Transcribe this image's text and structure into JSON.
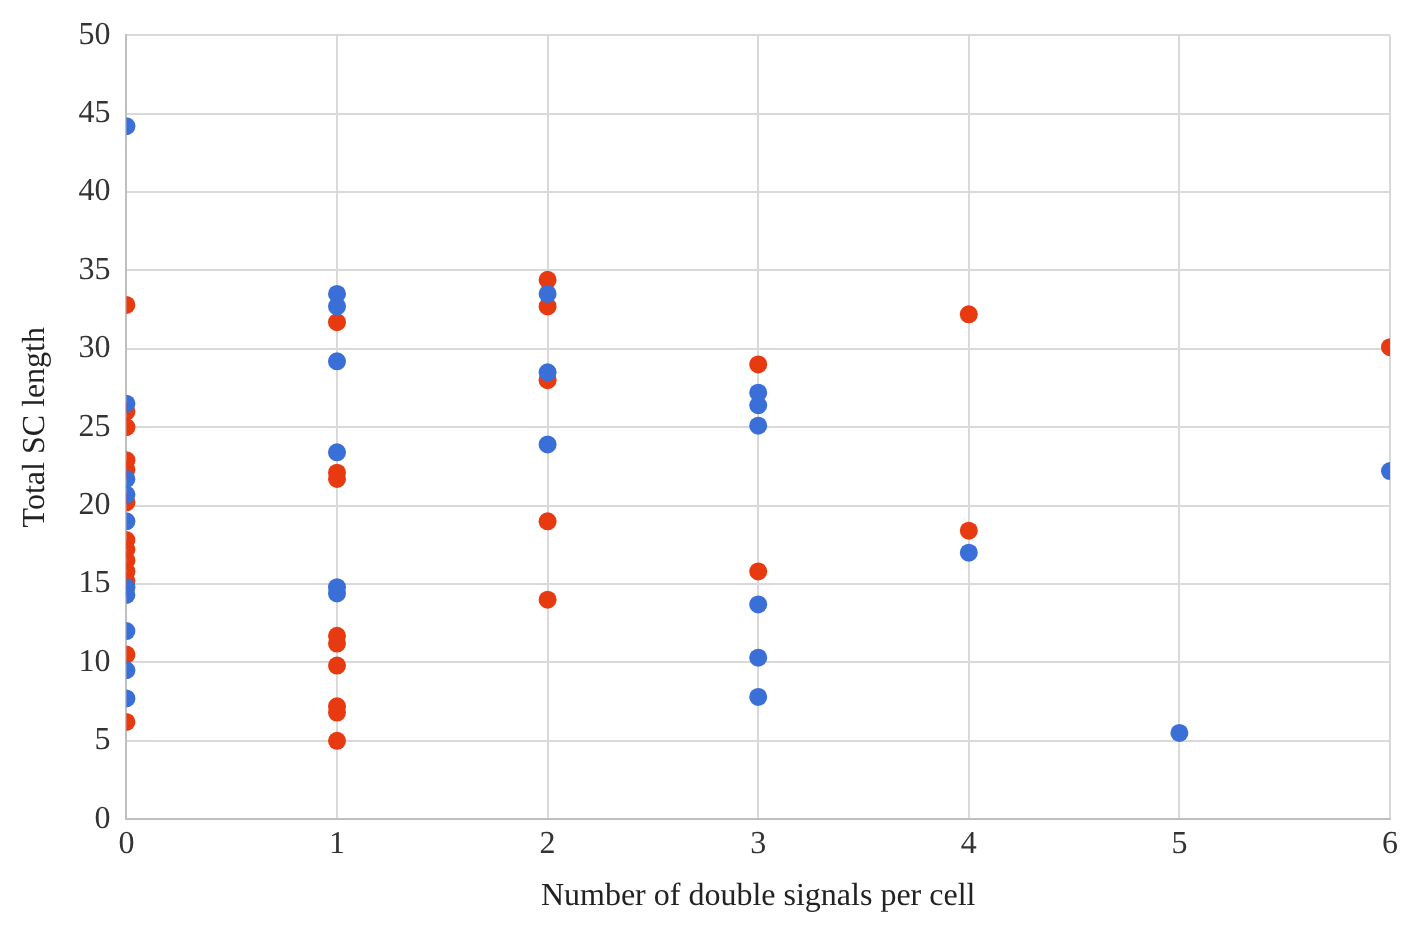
{
  "chart_data": {
    "type": "scatter",
    "xlabel": "Number of double signals per cell",
    "ylabel": "Total SC length",
    "xlim": [
      0,
      6
    ],
    "xticks": [
      0,
      1,
      2,
      3,
      4,
      5,
      6
    ],
    "ylim": [
      0,
      50
    ],
    "yticks": [
      0,
      5,
      10,
      15,
      20,
      25,
      30,
      35,
      40,
      45,
      50
    ],
    "grid": true,
    "legend": false,
    "marker": "circle",
    "series": [
      {
        "color": "#3a6fd8",
        "x": [
          0,
          0,
          0,
          0,
          0,
          0,
          0,
          0,
          0,
          0,
          1,
          1,
          1,
          1,
          1,
          1,
          2,
          2,
          2,
          3,
          3,
          3,
          3,
          3,
          3,
          4,
          5,
          6
        ],
        "values": [
          44.2,
          26.5,
          21.7,
          20.7,
          19,
          14.8,
          14.3,
          12,
          9.5,
          7.7,
          33.5,
          32.7,
          29.2,
          23.4,
          14.8,
          14.4,
          33.5,
          28.5,
          23.9,
          27.2,
          26.4,
          25.1,
          13.7,
          10.3,
          7.8,
          17,
          5.5,
          22.2
        ]
      },
      {
        "color": "#e83a10",
        "x": [
          0,
          0,
          0,
          0,
          0,
          0,
          0,
          0,
          0,
          0,
          0,
          0,
          0,
          1,
          1,
          1,
          1,
          1,
          1,
          1,
          1,
          1,
          2,
          2,
          2,
          2,
          2,
          3,
          3,
          4,
          4,
          6
        ],
        "values": [
          32.8,
          26,
          25,
          22.9,
          22.3,
          20.2,
          17.8,
          17.2,
          16.5,
          15.8,
          15.2,
          10.5,
          6.2,
          31.7,
          22.1,
          21.7,
          11.7,
          11.2,
          9.8,
          7.2,
          6.8,
          5,
          34.4,
          32.7,
          28,
          19,
          14,
          29,
          15.8,
          32.2,
          18.4,
          30.1
        ]
      }
    ]
  }
}
